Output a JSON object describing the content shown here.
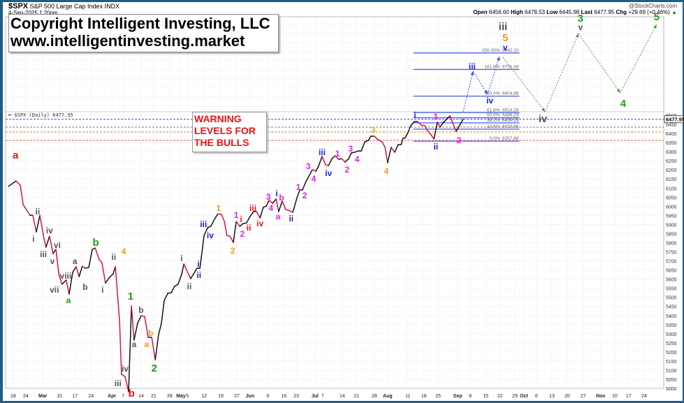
{
  "header": {
    "symbol": "$SPX",
    "name": "S&P 500 Large Cap Index INDX",
    "datetime": "4-Sep-2025 1:20pm",
    "brand": "@StockCharts.com",
    "open_label": "Open",
    "open": "6456.60",
    "high_label": "High",
    "high": "6478.53",
    "low_label": "Low",
    "low": "6445.98",
    "last_label": "Last",
    "last": "6477.95",
    "chg_label": "Chg",
    "chg": "+29.69 (+0.46%)",
    "chg_arrow": "▲"
  },
  "overlay": {
    "copyright_line1": "Copyright Intelligent Investing, LLC",
    "copyright_line2": "www.intelligentinvesting.market",
    "warning": [
      "WARNING",
      "LEVELS FOR",
      "THE BULLS"
    ],
    "legend": "$SPX (Daily) 6477.95",
    "price_tag": "6477.95"
  },
  "colors": {
    "up": "#111111",
    "down": "#dd1144",
    "fib": "#4a5ff0",
    "blue": "#1a22dd",
    "gray": "#555555",
    "green": "#1e9a1e",
    "orange": "#f29a1f",
    "magenta": "#e81ee8",
    "red": "#ee1111"
  },
  "chart_data": {
    "type": "line",
    "title": "$SPX (Daily)",
    "ylim": [
      5000,
      7040
    ],
    "y_ticks": [
      5000,
      5050,
      5100,
      5150,
      5200,
      5250,
      5300,
      5350,
      5400,
      5450,
      5500,
      5550,
      5600,
      5650,
      5700,
      5750,
      5800,
      5850,
      5900,
      5950,
      6000,
      6050,
      6100,
      6150,
      6200,
      6250,
      6300,
      6350,
      6400,
      6450,
      6500
    ],
    "x_unit": "trading-day index",
    "x_ticks": [
      [
        "18",
        1.5,
        false
      ],
      [
        "24",
        5.4,
        false
      ],
      [
        "Mar",
        10.7,
        true
      ],
      [
        "10",
        15.9,
        false
      ],
      [
        "17",
        20.7,
        false
      ],
      [
        "24",
        25.7,
        false
      ],
      [
        "Apr",
        32.2,
        true
      ],
      [
        "7",
        35.7,
        false
      ],
      [
        "14",
        41.3,
        false
      ],
      [
        "21",
        45.2,
        false
      ],
      [
        "28",
        50.2,
        false
      ],
      [
        "May",
        53.7,
        true
      ],
      [
        "5",
        55.7,
        false
      ],
      [
        "12",
        60.9,
        false
      ],
      [
        "19",
        66.1,
        false
      ],
      [
        "27",
        71.1,
        false
      ],
      [
        "Jun",
        75.2,
        true
      ],
      [
        "9",
        80.7,
        false
      ],
      [
        "16",
        85.7,
        false
      ],
      [
        "23",
        89.6,
        false
      ],
      [
        "Jul",
        95.4,
        true
      ],
      [
        "7",
        97.8,
        false
      ],
      [
        "14",
        103.9,
        false
      ],
      [
        "21",
        108.3,
        false
      ],
      [
        "28",
        113.9,
        false
      ],
      [
        "Aug",
        118.0,
        true
      ],
      [
        "11",
        124.3,
        false
      ],
      [
        "18",
        129.3,
        false
      ],
      [
        "25",
        133.7,
        false
      ],
      [
        "Sep",
        139.8,
        true
      ],
      [
        "8",
        143.7,
        false
      ],
      [
        "15",
        148.5,
        false
      ],
      [
        "22",
        153.0,
        false
      ],
      [
        "29",
        157.6,
        false
      ],
      [
        "Oct",
        160.4,
        true
      ],
      [
        "6",
        164.3,
        false
      ],
      [
        "13",
        169.1,
        false
      ],
      [
        "20",
        173.9,
        false
      ],
      [
        "27",
        178.9,
        false
      ],
      [
        "Nov",
        184.3,
        true
      ],
      [
        "10",
        188.7,
        false
      ],
      [
        "17",
        193.0,
        false
      ],
      [
        "24",
        197.8,
        false
      ]
    ],
    "series": [
      {
        "name": "$SPX",
        "points": [
          [
            0,
            6109
          ],
          [
            2.4,
            6139
          ],
          [
            3.7,
            6116
          ],
          [
            4.6,
            6009
          ],
          [
            6.7,
            5951
          ],
          [
            7.6,
            5951
          ],
          [
            8.7,
            5859
          ],
          [
            9.8,
            5951
          ],
          [
            10.9,
            5840
          ],
          [
            11.7,
            5775
          ],
          [
            12.8,
            5836
          ],
          [
            13.9,
            5740
          ],
          [
            14.8,
            5763
          ],
          [
            15.7,
            5625
          ],
          [
            16.7,
            5572
          ],
          [
            18.0,
            5595
          ],
          [
            18.9,
            5518
          ],
          [
            20.0,
            5637
          ],
          [
            21.1,
            5668
          ],
          [
            22.0,
            5614
          ],
          [
            23.0,
            5671
          ],
          [
            23.9,
            5660
          ],
          [
            25.0,
            5664
          ],
          [
            26.1,
            5763
          ],
          [
            27.0,
            5771
          ],
          [
            28.3,
            5706
          ],
          [
            29.1,
            5691
          ],
          [
            30.2,
            5579
          ],
          [
            31.5,
            5610
          ],
          [
            32.6,
            5629
          ],
          [
            33.3,
            5668
          ],
          [
            34.6,
            5368
          ],
          [
            35.2,
            5077
          ],
          [
            36.3,
            5065
          ],
          [
            37.4,
            4981
          ],
          [
            38.3,
            5453
          ],
          [
            39.1,
            5265
          ],
          [
            40.2,
            5357
          ],
          [
            41.3,
            5399
          ],
          [
            42.4,
            5395
          ],
          [
            43.5,
            5280
          ],
          [
            44.6,
            5280
          ],
          [
            45.7,
            5157
          ],
          [
            46.7,
            5292
          ],
          [
            47.6,
            5357
          ],
          [
            48.5,
            5483
          ],
          [
            49.6,
            5522
          ],
          [
            50.7,
            5526
          ],
          [
            51.7,
            5560
          ],
          [
            52.8,
            5572
          ],
          [
            53.9,
            5625
          ],
          [
            54.6,
            5683
          ],
          [
            56.7,
            5602
          ],
          [
            58.7,
            5660
          ],
          [
            59.6,
            5660
          ],
          [
            60.9,
            5840
          ],
          [
            62.0,
            5882
          ],
          [
            63.0,
            5890
          ],
          [
            64.1,
            5928
          ],
          [
            65.2,
            5959
          ],
          [
            66.3,
            5955
          ],
          [
            67.2,
            5917
          ],
          [
            68.0,
            5840
          ],
          [
            68.9,
            5836
          ],
          [
            70.0,
            5802
          ],
          [
            70.9,
            5917
          ],
          [
            72.0,
            5890
          ],
          [
            73.0,
            5905
          ],
          [
            74.1,
            5909
          ],
          [
            75.2,
            5944
          ],
          [
            76.3,
            5971
          ],
          [
            77.2,
            5971
          ],
          [
            78.3,
            5936
          ],
          [
            79.3,
            5994
          ],
          [
            80.2,
            6001
          ],
          [
            81.1,
            6032
          ],
          [
            82.2,
            6017
          ],
          [
            83.3,
            6040
          ],
          [
            84.1,
            5971
          ],
          [
            85.2,
            6028
          ],
          [
            86.3,
            5982
          ],
          [
            87.2,
            5978
          ],
          [
            88.5,
            5967
          ],
          [
            89.8,
            6047
          ],
          [
            90.7,
            6090
          ],
          [
            91.5,
            6090
          ],
          [
            92.6,
            6136
          ],
          [
            94.6,
            6201
          ],
          [
            95.7,
            6193
          ],
          [
            96.5,
            6220
          ],
          [
            97.6,
            6274
          ],
          [
            98.7,
            6228
          ],
          [
            99.6,
            6224
          ],
          [
            100.7,
            6262
          ],
          [
            101.7,
            6278
          ],
          [
            102.8,
            6258
          ],
          [
            103.7,
            6262
          ],
          [
            104.8,
            6243
          ],
          [
            105.9,
            6262
          ],
          [
            106.7,
            6293
          ],
          [
            107.8,
            6297
          ],
          [
            108.9,
            6304
          ],
          [
            109.8,
            6304
          ],
          [
            110.9,
            6354
          ],
          [
            112.0,
            6362
          ],
          [
            112.8,
            6385
          ],
          [
            113.9,
            6385
          ],
          [
            115.0,
            6366
          ],
          [
            116.3,
            6354
          ],
          [
            117.2,
            6324
          ],
          [
            118.0,
            6239
          ],
          [
            119.1,
            6324
          ],
          [
            120.2,
            6297
          ],
          [
            121.3,
            6339
          ],
          [
            122.2,
            6339
          ],
          [
            122.8,
            6373
          ],
          [
            123.5,
            6377
          ],
          [
            124.3,
            6404
          ],
          [
            125.2,
            6442
          ],
          [
            126.3,
            6465
          ],
          [
            127.4,
            6465
          ],
          [
            128.5,
            6446
          ],
          [
            129.6,
            6442
          ],
          [
            130.4,
            6416
          ],
          [
            131.5,
            6393
          ],
          [
            132.4,
            6370
          ],
          [
            133.5,
            6462
          ],
          [
            134.3,
            6435
          ],
          [
            135.4,
            6462
          ],
          [
            137.4,
            6496
          ],
          [
            139.3,
            6412
          ],
          [
            141.5,
            6477.95
          ]
        ]
      }
    ],
    "projections": [
      {
        "color": "blue",
        "points": [
          [
            141.5,
            6519
          ],
          [
            144.6,
            6742
          ],
          [
            149.1,
            6615
          ],
          [
            152.8,
            6822
          ]
        ]
      },
      {
        "color": "gray",
        "points": [
          [
            153.9,
            6818
          ],
          [
            167.0,
            6519
          ],
          [
            177.4,
            6949
          ]
        ]
      },
      {
        "color": "green",
        "points": [
          [
            177.4,
            6949
          ],
          [
            190.4,
            6623
          ],
          [
            201.7,
            6999
          ]
        ]
      }
    ],
    "fib_range": [
      126.0,
      159.0
    ],
    "fib_levels": [
      [
        "200.00%: 6842.10",
        6842.1
      ],
      [
        "161.8%: 6751.49",
        6751.49
      ],
      [
        "100.0%: 6604.88",
        6604.88
      ],
      [
        "61.8%: 6514.28",
        6514.28
      ],
      [
        "50.0%: 6486.29",
        6486.29
      ],
      [
        "38.2%: 6458.29",
        6458.29
      ],
      [
        "23.6%: 6423.66",
        6423.66
      ],
      [
        "0.0%: 6357.68",
        6357.68
      ]
    ],
    "warning_levels": [
      {
        "value": 6477.95,
        "color": "blue"
      },
      {
        "value": 6435,
        "color": "gray"
      },
      {
        "value": 6408,
        "color": "orange"
      },
      {
        "value": 6362,
        "color": "red"
      }
    ],
    "wave_labels": [
      [
        "a",
        2.2,
        6281,
        "red",
        1
      ],
      [
        "ii",
        9.1,
        5974,
        "gray",
        0
      ],
      [
        "i",
        7.8,
        5825,
        "gray",
        0
      ],
      [
        "iv",
        12.8,
        5871,
        "gray",
        0
      ],
      [
        "iii",
        10.9,
        5740,
        "gray",
        0
      ],
      [
        "vi",
        15.2,
        5790,
        "gray",
        0
      ],
      [
        "v",
        13.7,
        5702,
        "gray",
        0
      ],
      [
        "viii",
        17.8,
        5622,
        "gray",
        0
      ],
      [
        "vii",
        14.3,
        5545,
        "gray",
        0
      ],
      [
        "a",
        20.7,
        5702,
        "gray",
        0
      ],
      [
        "b",
        23.9,
        5560,
        "gray",
        0
      ],
      [
        "i",
        29.3,
        5545,
        "gray",
        0
      ],
      [
        "ii",
        32.8,
        5725,
        "gray",
        0
      ],
      [
        "iii",
        34.1,
        5031,
        "gray",
        0
      ],
      [
        "iv",
        36.3,
        5111,
        "gray",
        0
      ],
      [
        "a",
        39.1,
        5246,
        "gray",
        0
      ],
      [
        "b",
        41.3,
        5434,
        "gray",
        0
      ],
      [
        "a",
        18.7,
        5487,
        "green",
        0
      ],
      [
        "b",
        27.2,
        5802,
        "green",
        1
      ],
      [
        "1",
        38.0,
        5506,
        "green",
        1
      ],
      [
        "2",
        45.4,
        5111,
        "green",
        1
      ],
      [
        "4",
        35.9,
        5756,
        "orange",
        0
      ],
      [
        "b",
        44.3,
        5307,
        "orange",
        0
      ],
      [
        "a",
        43.0,
        5246,
        "orange",
        0
      ],
      [
        "b",
        38.3,
        4973,
        "red",
        1
      ],
      [
        "i",
        53.9,
        5717,
        "gray",
        0
      ],
      [
        "ii",
        56.3,
        5564,
        "gray",
        0
      ],
      [
        "i",
        59.1,
        5687,
        "blue",
        0
      ],
      [
        "ii",
        59.3,
        5625,
        "blue",
        0
      ],
      [
        "iii",
        60.7,
        5905,
        "blue",
        0
      ],
      [
        "iv",
        62.8,
        5844,
        "blue",
        0
      ],
      [
        "1",
        65.4,
        5994,
        "orange",
        0
      ],
      [
        "2",
        69.8,
        5760,
        "orange",
        0
      ],
      [
        "1",
        70.9,
        5955,
        "magenta",
        0
      ],
      [
        "i",
        72.4,
        5932,
        "red",
        0
      ],
      [
        "2",
        72.8,
        5852,
        "magenta",
        0
      ],
      [
        "ii",
        74.8,
        5886,
        "red",
        0
      ],
      [
        "iii",
        76.1,
        5994,
        "red",
        0
      ],
      [
        "iv",
        78.3,
        5909,
        "red",
        0
      ],
      [
        "3",
        80.9,
        6055,
        "magenta",
        0
      ],
      [
        "4",
        81.7,
        5994,
        "magenta",
        0
      ],
      [
        "i",
        83.5,
        6074,
        "blue",
        0
      ],
      [
        "b",
        85.0,
        6051,
        "magenta",
        0
      ],
      [
        "a",
        83.9,
        5948,
        "magenta",
        0
      ],
      [
        "ii",
        88.0,
        5936,
        "blue",
        0
      ],
      [
        "1",
        90.2,
        6109,
        "magenta",
        0
      ],
      [
        "2",
        92.2,
        6063,
        "magenta",
        0
      ],
      [
        "3",
        93.3,
        6224,
        "magenta",
        0
      ],
      [
        "4",
        95.0,
        6155,
        "magenta",
        0
      ],
      [
        "iii",
        97.6,
        6301,
        "blue",
        0
      ],
      [
        "iv",
        99.6,
        6185,
        "blue",
        0
      ],
      [
        "1",
        102.4,
        6293,
        "magenta",
        0
      ],
      [
        "2",
        105.4,
        6205,
        "magenta",
        0
      ],
      [
        "3",
        106.5,
        6320,
        "magenta",
        0
      ],
      [
        "4",
        108.5,
        6262,
        "magenta",
        0
      ],
      [
        "3",
        113.5,
        6423,
        "orange",
        0
      ],
      [
        "4",
        117.6,
        6197,
        "orange",
        0
      ],
      [
        "i",
        126.5,
        6504,
        "blue",
        0
      ],
      [
        "ii",
        133.0,
        6331,
        "blue",
        0
      ],
      [
        "1",
        133.0,
        6496,
        "magenta",
        0
      ],
      [
        "2",
        140.2,
        6366,
        "magenta",
        0
      ],
      [
        "iii",
        144.3,
        6772,
        "blue",
        0
      ],
      [
        "iv",
        149.8,
        6584,
        "blue",
        0
      ],
      [
        "v",
        154.6,
        6876,
        "blue",
        0
      ],
      [
        "iv",
        166.3,
        6481,
        "gray",
        1
      ],
      [
        "4",
        191.3,
        6565,
        "green",
        1
      ],
      [
        "iii",
        153.9,
        6987,
        "gray",
        1
      ],
      [
        "5",
        154.6,
        6926,
        "orange",
        1
      ],
      [
        "3",
        178.0,
        7033,
        "green",
        1
      ],
      [
        "v",
        178.0,
        6987,
        "gray",
        0
      ],
      [
        "5",
        201.7,
        7041,
        "green",
        1
      ]
    ]
  }
}
